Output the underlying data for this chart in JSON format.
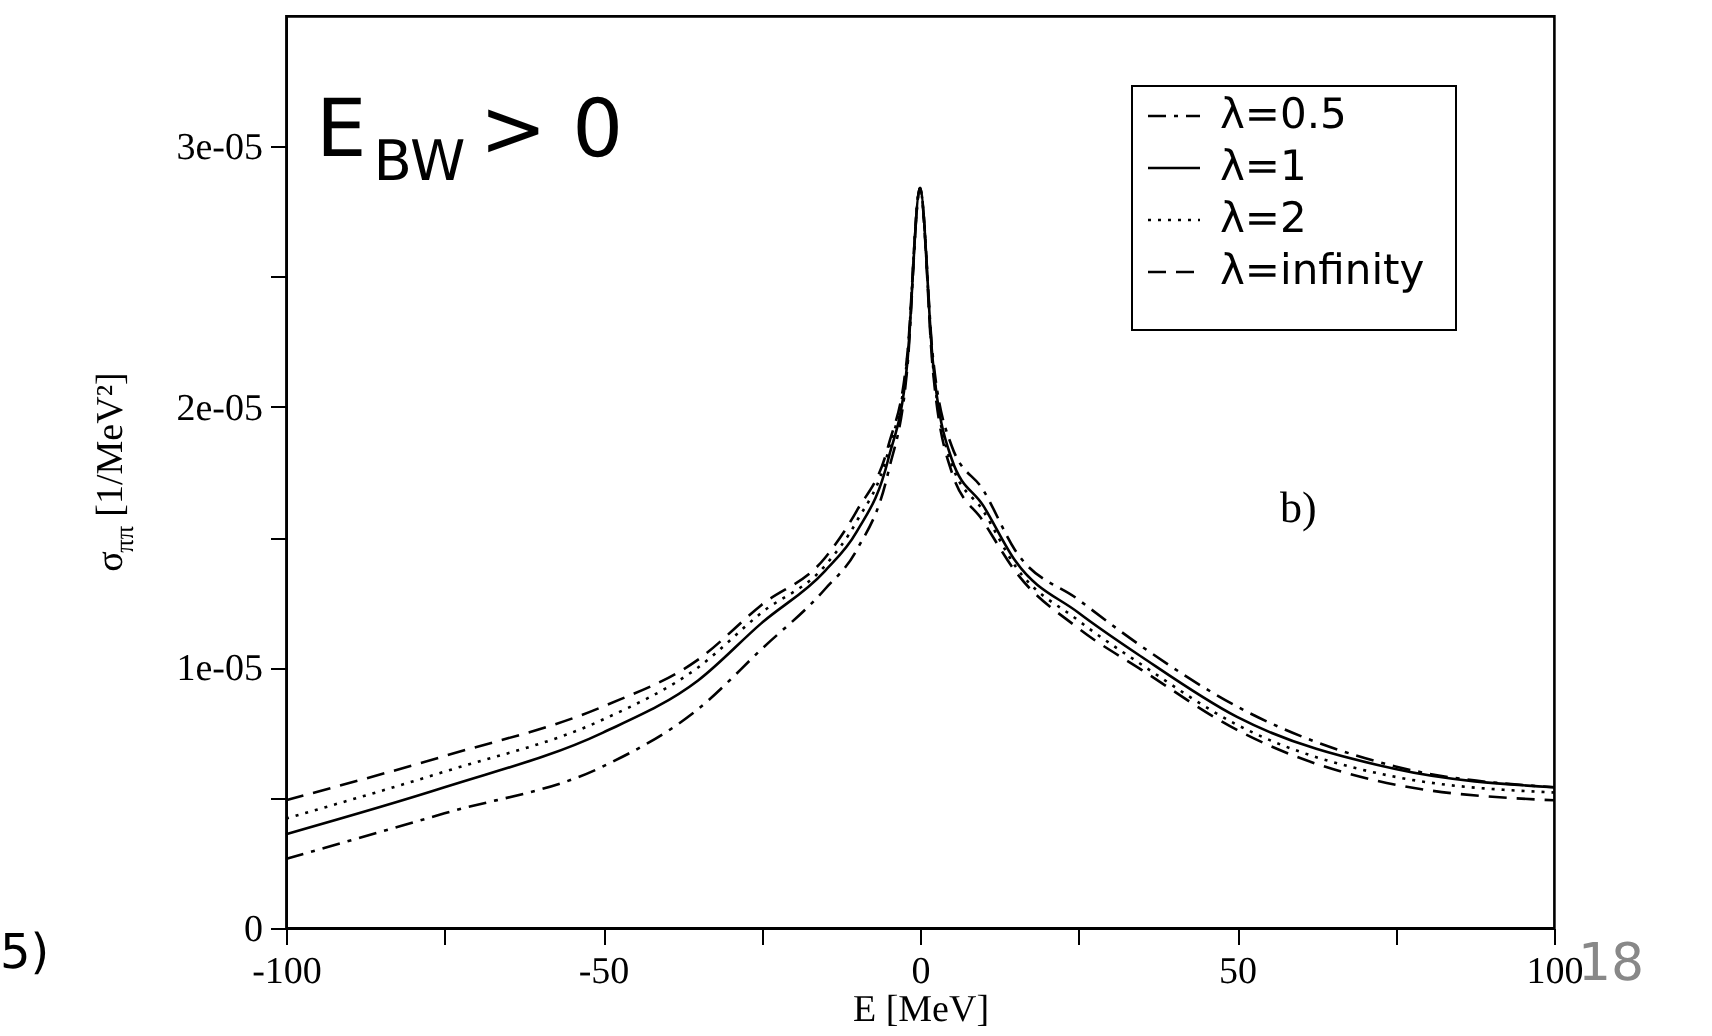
{
  "chart_data": {
    "type": "line",
    "xlabel": "E [MeV]",
    "ylabel": "σ$_{ππ}$ [1/MeV²]",
    "x": [
      -100,
      -75,
      -50,
      -35,
      -25,
      -15,
      -10,
      -5,
      -2,
      0,
      2,
      5,
      10,
      15,
      25,
      35,
      50,
      75,
      100
    ],
    "series": [
      {
        "name": "λ=0.5",
        "color": "#000000",
        "line_style": "dashdot",
        "values": [
          2.65e-06,
          4.4e-06,
          6.2e-06,
          8.4e-06,
          1.07e-05,
          1.3e-05,
          1.45e-05,
          1.75e-05,
          2.15e-05,
          2.84e-05,
          2.2e-05,
          1.85e-05,
          1.68e-05,
          1.45e-05,
          1.26e-05,
          1.08e-05,
          8.5e-06,
          6.2e-06,
          5.4e-06
        ]
      },
      {
        "name": "λ=1",
        "color": "#000000",
        "line_style": "solid",
        "values": [
          3.6e-06,
          5.4e-06,
          7.5e-06,
          9.5e-06,
          1.17e-05,
          1.37e-05,
          1.52e-05,
          1.8e-05,
          2.17e-05,
          2.84e-05,
          2.18e-05,
          1.8e-05,
          1.62e-05,
          1.41e-05,
          1.21e-05,
          1.04e-05,
          8.1e-06,
          6.1e-06,
          5.4e-06
        ]
      },
      {
        "name": "λ=2",
        "color": "#000000",
        "line_style": "dotted",
        "values": [
          4.2e-06,
          6e-06,
          8e-06,
          1e-05,
          1.21e-05,
          1.39e-05,
          1.56e-05,
          1.83e-05,
          2.19e-05,
          2.84e-05,
          2.17e-05,
          1.78e-05,
          1.6e-05,
          1.39e-05,
          1.18e-05,
          1.01e-05,
          7.8e-06,
          5.8e-06,
          5.2e-06
        ]
      },
      {
        "name": "λ=infinity",
        "color": "#000000",
        "line_style": "dashed",
        "values": [
          4.9e-06,
          6.6e-06,
          8.5e-06,
          1.03e-05,
          1.24e-05,
          1.42e-05,
          1.6e-05,
          1.85e-05,
          2.2e-05,
          2.84e-05,
          2.15e-05,
          1.75e-05,
          1.56e-05,
          1.37e-05,
          1.15e-05,
          9.9e-06,
          7.6e-06,
          5.5e-06,
          4.9e-06
        ]
      }
    ],
    "xlim": [
      -100,
      100
    ],
    "xticks": [
      -100,
      {
        "value": -75,
        "label": null
      },
      -50,
      {
        "value": -25,
        "label": null
      },
      0,
      {
        "value": 25,
        "label": null
      },
      50,
      {
        "value": 75,
        "label": null
      },
      100
    ],
    "ylim": [
      0,
      3.5e-05
    ],
    "yticks": [
      0,
      {
        "value": 5e-06,
        "label": null
      },
      {
        "value": 1e-05,
        "label": "1e-05"
      },
      {
        "value": 1.5e-05,
        "label": null
      },
      {
        "value": 2e-05,
        "label": "2e-05"
      },
      {
        "value": 2.5e-05,
        "label": null
      },
      {
        "value": 3e-05,
        "label": "3e-05"
      }
    ],
    "grid": false,
    "legend": "top right",
    "marker": "none",
    "annotations": [
      "E$_{BW}$ > 0",
      "b)",
      "18",
      "5)"
    ]
  }
}
